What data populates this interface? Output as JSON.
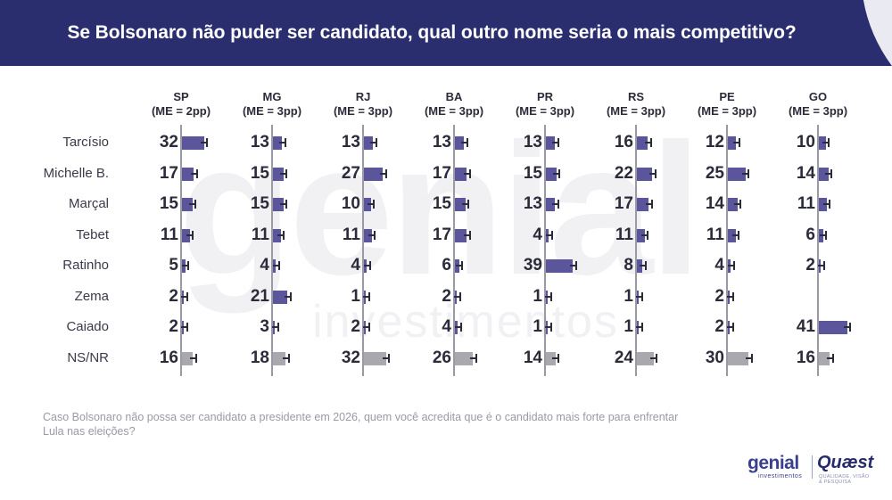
{
  "title": "Se Bolsonaro não puder ser candidato, qual outro nome seria o mais competitivo?",
  "footnote": "Caso Bolsonaro não possa ser candidato a presidente em 2026, quem você acredita que é o candidato mais forte para enfrentar Lula nas eleições?",
  "watermark": {
    "main": "genial",
    "sub": "investimentos"
  },
  "logos": {
    "genial": "genial",
    "genial_sub": "investimentos",
    "quaest": "Quæst",
    "quaest_sub": "QUALIDADE, VISÃO & PESQUISA"
  },
  "colors": {
    "header": "#2a2e6e",
    "bar": "#5b559b",
    "bar_nsnr": "#a8a8ae",
    "axis": "#9a9aa4"
  },
  "chart_data": {
    "type": "bar",
    "orientation": "horizontal",
    "title": "Se Bolsonaro não puder ser candidato, qual outro nome seria o mais competitivo?",
    "categories": [
      "Tarcísio",
      "Michelle B.",
      "Marçal",
      "Tebet",
      "Ratinho",
      "Zema",
      "Caiado",
      "NS/NR"
    ],
    "series": [
      {
        "name": "SP",
        "margin": "(ME = 2pp)",
        "values": [
          32,
          17,
          15,
          11,
          5,
          2,
          2,
          16
        ]
      },
      {
        "name": "MG",
        "margin": "(ME = 3pp)",
        "values": [
          13,
          15,
          15,
          11,
          4,
          21,
          3,
          18
        ]
      },
      {
        "name": "RJ",
        "margin": "(ME = 3pp)",
        "values": [
          13,
          27,
          10,
          11,
          4,
          1,
          2,
          32
        ]
      },
      {
        "name": "BA",
        "margin": "(ME = 3pp)",
        "values": [
          13,
          17,
          15,
          17,
          6,
          2,
          4,
          26
        ]
      },
      {
        "name": "PR",
        "margin": "(ME = 3pp)",
        "values": [
          13,
          15,
          13,
          4,
          39,
          1,
          1,
          14
        ]
      },
      {
        "name": "RS",
        "margin": "(ME = 3pp)",
        "values": [
          16,
          22,
          17,
          11,
          8,
          1,
          1,
          24
        ]
      },
      {
        "name": "PE",
        "margin": "(ME = 3pp)",
        "values": [
          12,
          25,
          14,
          11,
          4,
          2,
          2,
          30
        ]
      },
      {
        "name": "GO",
        "margin": "(ME = 3pp)",
        "values": [
          10,
          14,
          11,
          6,
          2,
          null,
          41,
          16
        ]
      }
    ],
    "error_bars": true,
    "grid": false
  }
}
